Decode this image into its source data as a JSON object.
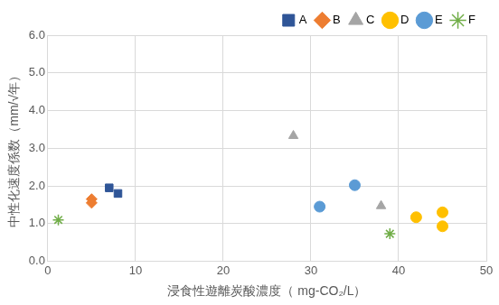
{
  "chart_data": {
    "type": "scatter",
    "x_label": "浸食性遊離炭酸濃度（ mg-CO₂/L）",
    "y_label": "中性化速度係数（mm/√年）",
    "series": [
      {
        "name": "A",
        "color": "#2f5597",
        "marker": "square",
        "x": [
          7,
          8
        ],
        "values": [
          1.95,
          1.8
        ]
      },
      {
        "name": "B",
        "color": "#ed7d31",
        "marker": "diamond",
        "x": [
          5,
          5
        ],
        "values": [
          1.65,
          1.55
        ]
      },
      {
        "name": "C",
        "color": "#a5a5a5",
        "marker": "triangle",
        "x": [
          28,
          38
        ],
        "values": [
          3.33,
          1.47
        ]
      },
      {
        "name": "D",
        "color": "#ffc000",
        "marker": "circle",
        "x": [
          42,
          45,
          45
        ],
        "values": [
          1.17,
          1.3,
          0.93
        ]
      },
      {
        "name": "E",
        "color": "#5b9bd5",
        "marker": "circle",
        "x": [
          31,
          35
        ],
        "values": [
          1.45,
          2.02
        ]
      },
      {
        "name": "F",
        "color": "#70ad47",
        "marker": "star",
        "x": [
          1.2,
          39
        ],
        "values": [
          1.1,
          0.73
        ]
      }
    ],
    "xlim": [
      0,
      50
    ],
    "xticks": [
      0,
      10,
      20,
      30,
      40,
      50
    ],
    "ylim": [
      0,
      6
    ],
    "yticks": [
      {
        "value": 0,
        "label": "0.0"
      },
      {
        "value": 1,
        "label": "1.0"
      },
      {
        "value": 2,
        "label": "2.0"
      },
      {
        "value": 3,
        "label": "3.0"
      },
      {
        "value": 4,
        "label": "4.0"
      },
      {
        "value": 5,
        "label": "5.0"
      },
      {
        "value": 6,
        "label": "6.0"
      }
    ],
    "grid": true,
    "legend": "upper right"
  }
}
